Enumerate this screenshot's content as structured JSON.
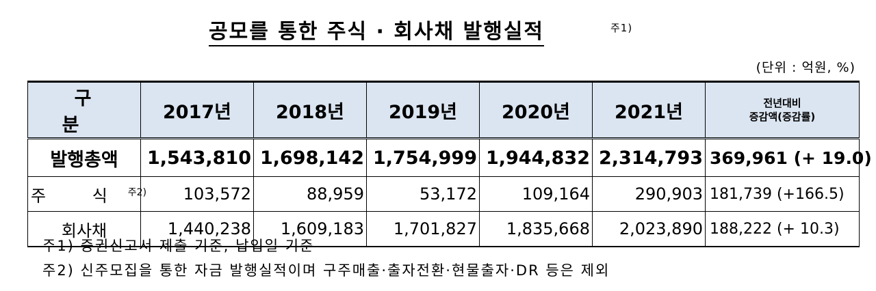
{
  "title": "공모를 통한 주식 · 회사채 발행실적",
  "title_note": "주1)",
  "unit": "(단위 : 억원, %)",
  "table": {
    "header": {
      "category": "구 분",
      "years": [
        "2017년",
        "2018년",
        "2019년",
        "2020년",
        "2021년"
      ],
      "compare_line1": "전년대비",
      "compare_line2": "증감액(증감률)"
    },
    "rows": [
      {
        "label": "발행총액",
        "note": "",
        "values": [
          "1,543,810",
          "1,698,142",
          "1,754,999",
          "1,944,832",
          "2,314,793"
        ],
        "change": "369,961 (+ 19.0)"
      },
      {
        "label": "주 식",
        "note": "주2)",
        "values": [
          "103,572",
          "88,959",
          "53,172",
          "109,164",
          "290,903"
        ],
        "change": "181,739 (+166.5)"
      },
      {
        "label": "회사채",
        "note": "",
        "values": [
          "1,440,238",
          "1,609,183",
          "1,701,827",
          "1,835,668",
          "2,023,890"
        ],
        "change": "188,222 (+ 10.3)"
      }
    ]
  },
  "notes": [
    "주1) 증권신고서 제출 기준, 납입일 기준",
    "주2) 신주모집을 통한 자금 발행실적이며 구주매출·출자전환·현물출자·DR 등은 제외"
  ]
}
